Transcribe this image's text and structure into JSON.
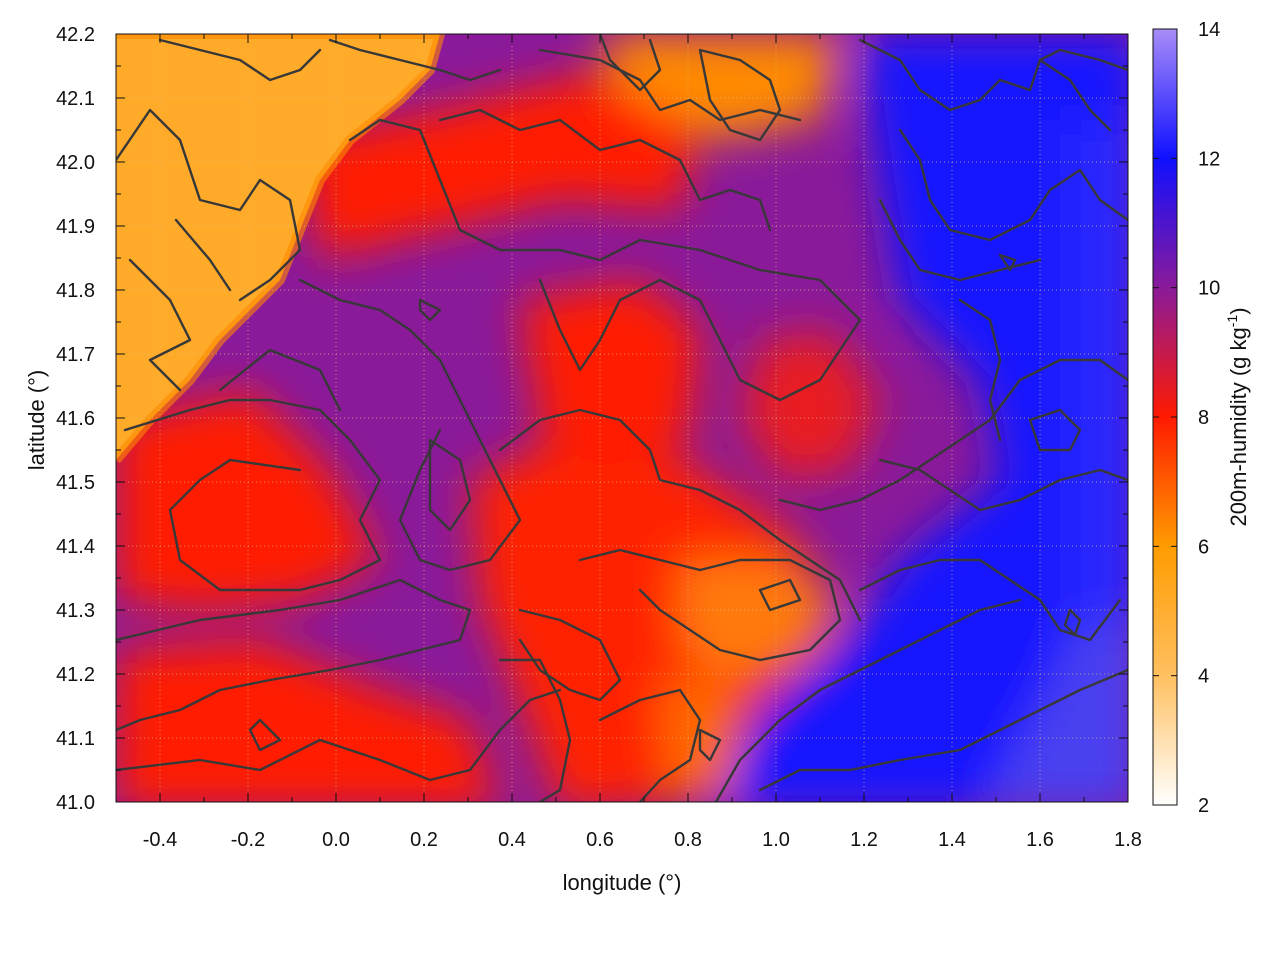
{
  "chart_data": {
    "type": "heatmap",
    "title": "",
    "xlabel": "longitude (°)",
    "ylabel": "latitude (°)",
    "colorbar_label": "200m-humidity (g kg",
    "colorbar_label_sup": "-1",
    "colorbar_label_end": ")",
    "xlim": [
      -0.5,
      1.8
    ],
    "ylim": [
      41.0,
      42.2
    ],
    "clim": [
      2,
      14
    ],
    "x_ticks": [
      "-0.4",
      "-0.2",
      "0.0",
      "0.2",
      "0.4",
      "0.6",
      "0.8",
      "1.0",
      "1.2",
      "1.4",
      "1.6",
      "1.8"
    ],
    "y_ticks": [
      "41.0",
      "41.1",
      "41.2",
      "41.3",
      "41.4",
      "41.5",
      "41.6",
      "41.7",
      "41.8",
      "41.9",
      "42.0",
      "42.1",
      "42.2"
    ],
    "colorbar_ticks": [
      "2",
      "4",
      "6",
      "8",
      "10",
      "12",
      "14"
    ],
    "colormap": [
      {
        "value": 2,
        "color": "#ffffff"
      },
      {
        "value": 4,
        "color": "#ffc060"
      },
      {
        "value": 6,
        "color": "#ff9c00"
      },
      {
        "value": 8,
        "color": "#ff1a00"
      },
      {
        "value": 10,
        "color": "#8a1a9a"
      },
      {
        "value": 12,
        "color": "#1010ff"
      },
      {
        "value": 14,
        "color": "#a88cf8"
      }
    ],
    "grid": true,
    "contour_color": "#383838"
  }
}
